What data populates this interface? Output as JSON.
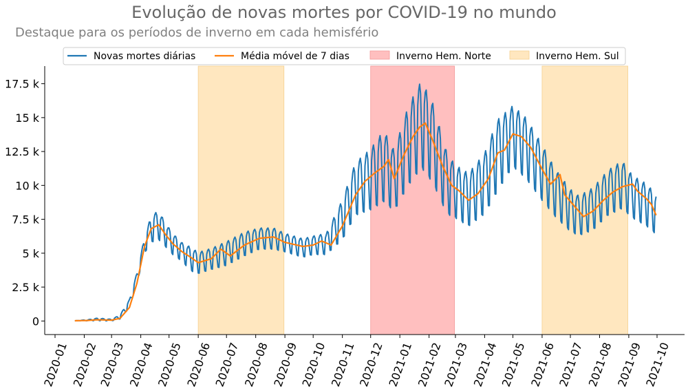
{
  "chart_data": {
    "type": "line",
    "title": "Evolução de novas mortes por COVID-19 no mundo",
    "subtitle": "Destaque para os períodos de inverno em cada hemisfério",
    "xlabel": "",
    "ylabel": "",
    "x_range": [
      "2020-01-01",
      "2021-10-01"
    ],
    "ylim": [
      -1000,
      18800
    ],
    "x_ticks": [
      "2020-01",
      "2020-02",
      "2020-03",
      "2020-04",
      "2020-05",
      "2020-06",
      "2020-07",
      "2020-08",
      "2020-09",
      "2020-10",
      "2020-11",
      "2020-12",
      "2021-01",
      "2021-02",
      "2021-03",
      "2021-04",
      "2021-05",
      "2021-06",
      "2021-07",
      "2021-08",
      "2021-09",
      "2021-10"
    ],
    "y_ticks": [
      {
        "value": 0,
        "label": "0"
      },
      {
        "value": 2500,
        "label": "2.5 k"
      },
      {
        "value": 5000,
        "label": "5 k"
      },
      {
        "value": 7500,
        "label": "7.5 k"
      },
      {
        "value": 10000,
        "label": "10 k"
      },
      {
        "value": 12500,
        "label": "12.5 k"
      },
      {
        "value": 15000,
        "label": "15 k"
      },
      {
        "value": 17500,
        "label": "17.5 k"
      }
    ],
    "grid": false,
    "legend_position": "top-center",
    "legend": [
      {
        "label": "Novas mortes diárias",
        "kind": "line",
        "color": "#1f77b4"
      },
      {
        "label": "Média móvel de 7 dias",
        "kind": "line",
        "color": "#ff7f0e"
      },
      {
        "label": "Inverno Hem. Norte",
        "kind": "patch",
        "color": "#ffbfbf"
      },
      {
        "label": "Inverno Hem. Sul",
        "kind": "patch",
        "color": "#ffe7bf"
      }
    ],
    "bands": [
      {
        "name": "Inverno Hem. Sul",
        "start": "2020-06-01",
        "end": "2020-08-31",
        "color": "#ffe7bf"
      },
      {
        "name": "Inverno Hem. Norte",
        "start": "2020-12-01",
        "end": "2021-02-28",
        "color": "#ffbfbf"
      },
      {
        "name": "Inverno Hem. Sul",
        "start": "2021-06-01",
        "end": "2021-08-31",
        "color": "#ffe7bf"
      }
    ],
    "series": [
      {
        "name": "Novas mortes diárias",
        "color": "#1f77b4",
        "weekly_cycle": true,
        "points": [
          [
            "2020-01-22",
            17,
            0
          ],
          [
            "2020-02-05",
            60,
            40
          ],
          [
            "2020-02-15",
            120,
            100
          ],
          [
            "2020-03-01",
            70,
            60
          ],
          [
            "2020-03-10",
            300,
            150
          ],
          [
            "2020-03-20",
            1300,
            300
          ],
          [
            "2020-03-28",
            3200,
            400
          ],
          [
            "2020-04-05",
            5600,
            600
          ],
          [
            "2020-04-12",
            6800,
            1000
          ],
          [
            "2020-04-20",
            7100,
            1100
          ],
          [
            "2020-04-27",
            6400,
            900
          ],
          [
            "2020-05-05",
            5700,
            800
          ],
          [
            "2020-05-15",
            5100,
            700
          ],
          [
            "2020-05-24",
            4600,
            900
          ],
          [
            "2020-06-01",
            4300,
            800
          ],
          [
            "2020-06-15",
            4600,
            800
          ],
          [
            "2020-07-01",
            5000,
            900
          ],
          [
            "2020-07-20",
            5700,
            900
          ],
          [
            "2020-08-05",
            6100,
            800
          ],
          [
            "2020-08-20",
            6100,
            800
          ],
          [
            "2020-09-01",
            5800,
            700
          ],
          [
            "2020-09-20",
            5400,
            700
          ],
          [
            "2020-10-01",
            5600,
            700
          ],
          [
            "2020-10-15",
            5700,
            800
          ],
          [
            "2020-11-01",
            7500,
            1500
          ],
          [
            "2020-11-15",
            9800,
            2000
          ],
          [
            "2020-12-01",
            10500,
            2300
          ],
          [
            "2020-12-15",
            11500,
            2700
          ],
          [
            "2020-12-26",
            10400,
            2300
          ],
          [
            "2021-01-10",
            13000,
            3000
          ],
          [
            "2021-01-24",
            14600,
            3300
          ],
          [
            "2021-02-05",
            13200,
            3000
          ],
          [
            "2021-02-20",
            10200,
            2300
          ],
          [
            "2021-03-01",
            9600,
            2000
          ],
          [
            "2021-03-15",
            9000,
            2000
          ],
          [
            "2021-04-01",
            10200,
            2300
          ],
          [
            "2021-04-15",
            12300,
            2700
          ],
          [
            "2021-05-01",
            13700,
            2300
          ],
          [
            "2021-05-15",
            12800,
            2300
          ],
          [
            "2021-06-01",
            11000,
            2100
          ],
          [
            "2021-06-15",
            9500,
            1800
          ],
          [
            "2021-07-01",
            8200,
            1600
          ],
          [
            "2021-07-10",
            7800,
            1500
          ],
          [
            "2021-07-25",
            8300,
            1600
          ],
          [
            "2021-08-10",
            9500,
            1700
          ],
          [
            "2021-08-25",
            10100,
            1800
          ],
          [
            "2021-09-05",
            9200,
            1600
          ],
          [
            "2021-09-20",
            8600,
            1600
          ],
          [
            "2021-09-30",
            7900,
            1500
          ]
        ]
      },
      {
        "name": "Média móvel de 7 dias",
        "color": "#ff7f0e",
        "points": [
          [
            "2020-01-22",
            17
          ],
          [
            "2020-02-05",
            40
          ],
          [
            "2020-02-15",
            90
          ],
          [
            "2020-03-01",
            60
          ],
          [
            "2020-03-10",
            200
          ],
          [
            "2020-03-20",
            1000
          ],
          [
            "2020-03-28",
            2800
          ],
          [
            "2020-04-05",
            5500
          ],
          [
            "2020-04-12",
            6800
          ],
          [
            "2020-04-20",
            7100
          ],
          [
            "2020-04-27",
            6400
          ],
          [
            "2020-05-05",
            5700
          ],
          [
            "2020-05-15",
            5100
          ],
          [
            "2020-05-24",
            4700
          ],
          [
            "2020-06-01",
            4300
          ],
          [
            "2020-06-15",
            4600
          ],
          [
            "2020-06-25",
            5300
          ],
          [
            "2020-07-05",
            4800
          ],
          [
            "2020-07-20",
            5600
          ],
          [
            "2020-08-05",
            6100
          ],
          [
            "2020-08-20",
            6200
          ],
          [
            "2020-09-01",
            5800
          ],
          [
            "2020-09-20",
            5500
          ],
          [
            "2020-10-01",
            5600
          ],
          [
            "2020-10-10",
            5900
          ],
          [
            "2020-10-20",
            5600
          ],
          [
            "2020-11-01",
            7000
          ],
          [
            "2020-11-15",
            9300
          ],
          [
            "2020-11-25",
            10300
          ],
          [
            "2020-12-05",
            10900
          ],
          [
            "2020-12-15",
            11400
          ],
          [
            "2020-12-20",
            11900
          ],
          [
            "2020-12-26",
            10500
          ],
          [
            "2021-01-05",
            12200
          ],
          [
            "2021-01-15",
            13600
          ],
          [
            "2021-01-22",
            14300
          ],
          [
            "2021-01-28",
            14600
          ],
          [
            "2021-02-05",
            13300
          ],
          [
            "2021-02-15",
            11500
          ],
          [
            "2021-02-25",
            10000
          ],
          [
            "2021-03-05",
            9600
          ],
          [
            "2021-03-15",
            8900
          ],
          [
            "2021-03-25",
            9400
          ],
          [
            "2021-04-05",
            10500
          ],
          [
            "2021-04-15",
            12400
          ],
          [
            "2021-04-22",
            12600
          ],
          [
            "2021-05-01",
            13800
          ],
          [
            "2021-05-10",
            13600
          ],
          [
            "2021-05-20",
            12800
          ],
          [
            "2021-06-01",
            11200
          ],
          [
            "2021-06-10",
            10100
          ],
          [
            "2021-06-20",
            10800
          ],
          [
            "2021-06-25",
            9300
          ],
          [
            "2021-07-05",
            8500
          ],
          [
            "2021-07-15",
            7700
          ],
          [
            "2021-07-25",
            8100
          ],
          [
            "2021-08-05",
            8900
          ],
          [
            "2021-08-15",
            9500
          ],
          [
            "2021-08-25",
            9900
          ],
          [
            "2021-09-05",
            10100
          ],
          [
            "2021-09-10",
            9600
          ],
          [
            "2021-09-20",
            9000
          ],
          [
            "2021-09-25",
            8600
          ],
          [
            "2021-09-30",
            7800
          ]
        ]
      }
    ]
  }
}
